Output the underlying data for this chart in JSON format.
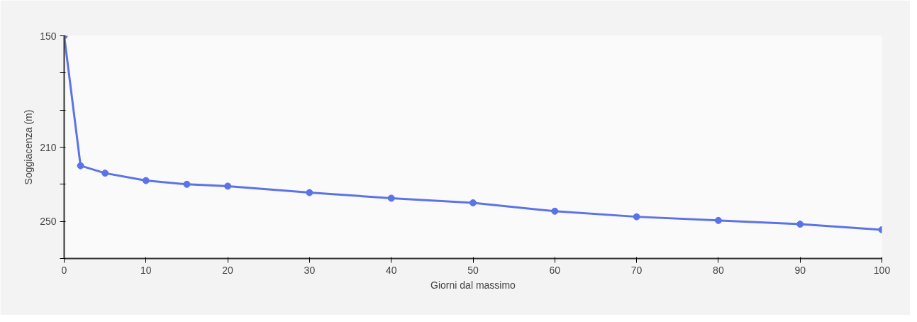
{
  "chart_data": {
    "type": "line",
    "xlabel": "Giorni dal massimo",
    "ylabel": "Soggiacenza (m)",
    "x": [
      0,
      2,
      5,
      10,
      15,
      20,
      30,
      40,
      50,
      60,
      70,
      80,
      90,
      100
    ],
    "series": [
      {
        "color": "#5b73e8",
        "values": [
          150,
          220,
          224,
          228,
          230,
          231,
          234.5,
          237.5,
          240,
          244.5,
          247.5,
          249.5,
          251.5,
          254.5
        ]
      }
    ],
    "xlim": [
      0,
      100
    ],
    "xticks": [
      0,
      10,
      20,
      30,
      40,
      50,
      60,
      70,
      80,
      90,
      100
    ],
    "ylim": [
      270,
      150
    ],
    "yticks": [
      150,
      {
        "value": 170,
        "label": null
      },
      {
        "value": 190,
        "label": null
      },
      210,
      {
        "value": 230,
        "label": null
      },
      250,
      {
        "value": 270,
        "label": null
      }
    ],
    "grid": false,
    "marker": "circle",
    "line_style": "solid"
  }
}
